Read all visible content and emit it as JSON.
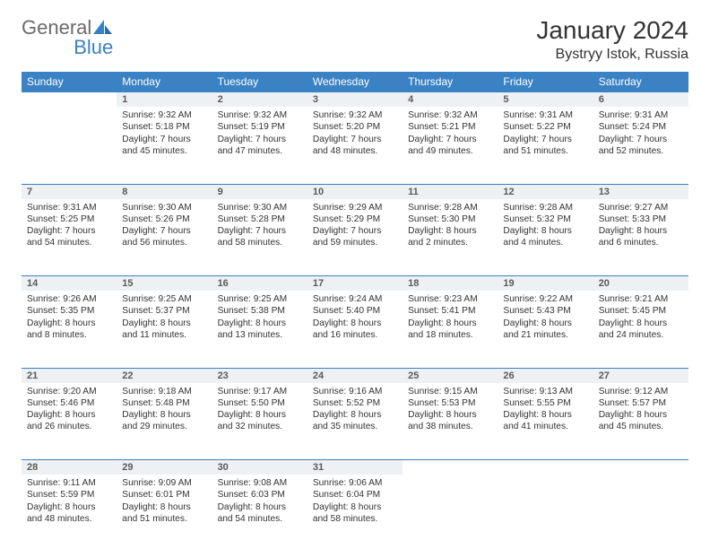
{
  "logo": {
    "text1": "General",
    "text2": "Blue"
  },
  "colors": {
    "header_bg": "#3b82c4",
    "rule": "#3b7fc4",
    "daynum_bg": "#eef1f3",
    "text": "#333333",
    "logo_gray": "#6a6a6a",
    "logo_blue": "#3b7fc4",
    "bg": "#ffffff"
  },
  "fonts": {
    "body_family": "Arial",
    "month_size_pt": 21,
    "location_size_pt": 12,
    "th_size_pt": 9,
    "cell_size_pt": 8
  },
  "title": "January 2024",
  "location": "Bystryy Istok, Russia",
  "weekdays": [
    "Sunday",
    "Monday",
    "Tuesday",
    "Wednesday",
    "Thursday",
    "Friday",
    "Saturday"
  ],
  "weeks": [
    {
      "nums": [
        "",
        "1",
        "2",
        "3",
        "4",
        "5",
        "6"
      ],
      "cells": [
        "",
        "Sunrise: 9:32 AM\nSunset: 5:18 PM\nDaylight: 7 hours and 45 minutes.",
        "Sunrise: 9:32 AM\nSunset: 5:19 PM\nDaylight: 7 hours and 47 minutes.",
        "Sunrise: 9:32 AM\nSunset: 5:20 PM\nDaylight: 7 hours and 48 minutes.",
        "Sunrise: 9:32 AM\nSunset: 5:21 PM\nDaylight: 7 hours and 49 minutes.",
        "Sunrise: 9:31 AM\nSunset: 5:22 PM\nDaylight: 7 hours and 51 minutes.",
        "Sunrise: 9:31 AM\nSunset: 5:24 PM\nDaylight: 7 hours and 52 minutes."
      ]
    },
    {
      "nums": [
        "7",
        "8",
        "9",
        "10",
        "11",
        "12",
        "13"
      ],
      "cells": [
        "Sunrise: 9:31 AM\nSunset: 5:25 PM\nDaylight: 7 hours and 54 minutes.",
        "Sunrise: 9:30 AM\nSunset: 5:26 PM\nDaylight: 7 hours and 56 minutes.",
        "Sunrise: 9:30 AM\nSunset: 5:28 PM\nDaylight: 7 hours and 58 minutes.",
        "Sunrise: 9:29 AM\nSunset: 5:29 PM\nDaylight: 7 hours and 59 minutes.",
        "Sunrise: 9:28 AM\nSunset: 5:30 PM\nDaylight: 8 hours and 2 minutes.",
        "Sunrise: 9:28 AM\nSunset: 5:32 PM\nDaylight: 8 hours and 4 minutes.",
        "Sunrise: 9:27 AM\nSunset: 5:33 PM\nDaylight: 8 hours and 6 minutes."
      ]
    },
    {
      "nums": [
        "14",
        "15",
        "16",
        "17",
        "18",
        "19",
        "20"
      ],
      "cells": [
        "Sunrise: 9:26 AM\nSunset: 5:35 PM\nDaylight: 8 hours and 8 minutes.",
        "Sunrise: 9:25 AM\nSunset: 5:37 PM\nDaylight: 8 hours and 11 minutes.",
        "Sunrise: 9:25 AM\nSunset: 5:38 PM\nDaylight: 8 hours and 13 minutes.",
        "Sunrise: 9:24 AM\nSunset: 5:40 PM\nDaylight: 8 hours and 16 minutes.",
        "Sunrise: 9:23 AM\nSunset: 5:41 PM\nDaylight: 8 hours and 18 minutes.",
        "Sunrise: 9:22 AM\nSunset: 5:43 PM\nDaylight: 8 hours and 21 minutes.",
        "Sunrise: 9:21 AM\nSunset: 5:45 PM\nDaylight: 8 hours and 24 minutes."
      ]
    },
    {
      "nums": [
        "21",
        "22",
        "23",
        "24",
        "25",
        "26",
        "27"
      ],
      "cells": [
        "Sunrise: 9:20 AM\nSunset: 5:46 PM\nDaylight: 8 hours and 26 minutes.",
        "Sunrise: 9:18 AM\nSunset: 5:48 PM\nDaylight: 8 hours and 29 minutes.",
        "Sunrise: 9:17 AM\nSunset: 5:50 PM\nDaylight: 8 hours and 32 minutes.",
        "Sunrise: 9:16 AM\nSunset: 5:52 PM\nDaylight: 8 hours and 35 minutes.",
        "Sunrise: 9:15 AM\nSunset: 5:53 PM\nDaylight: 8 hours and 38 minutes.",
        "Sunrise: 9:13 AM\nSunset: 5:55 PM\nDaylight: 8 hours and 41 minutes.",
        "Sunrise: 9:12 AM\nSunset: 5:57 PM\nDaylight: 8 hours and 45 minutes."
      ]
    },
    {
      "nums": [
        "28",
        "29",
        "30",
        "31",
        "",
        "",
        ""
      ],
      "cells": [
        "Sunrise: 9:11 AM\nSunset: 5:59 PM\nDaylight: 8 hours and 48 minutes.",
        "Sunrise: 9:09 AM\nSunset: 6:01 PM\nDaylight: 8 hours and 51 minutes.",
        "Sunrise: 9:08 AM\nSunset: 6:03 PM\nDaylight: 8 hours and 54 minutes.",
        "Sunrise: 9:06 AM\nSunset: 6:04 PM\nDaylight: 8 hours and 58 minutes.",
        "",
        "",
        ""
      ]
    }
  ]
}
